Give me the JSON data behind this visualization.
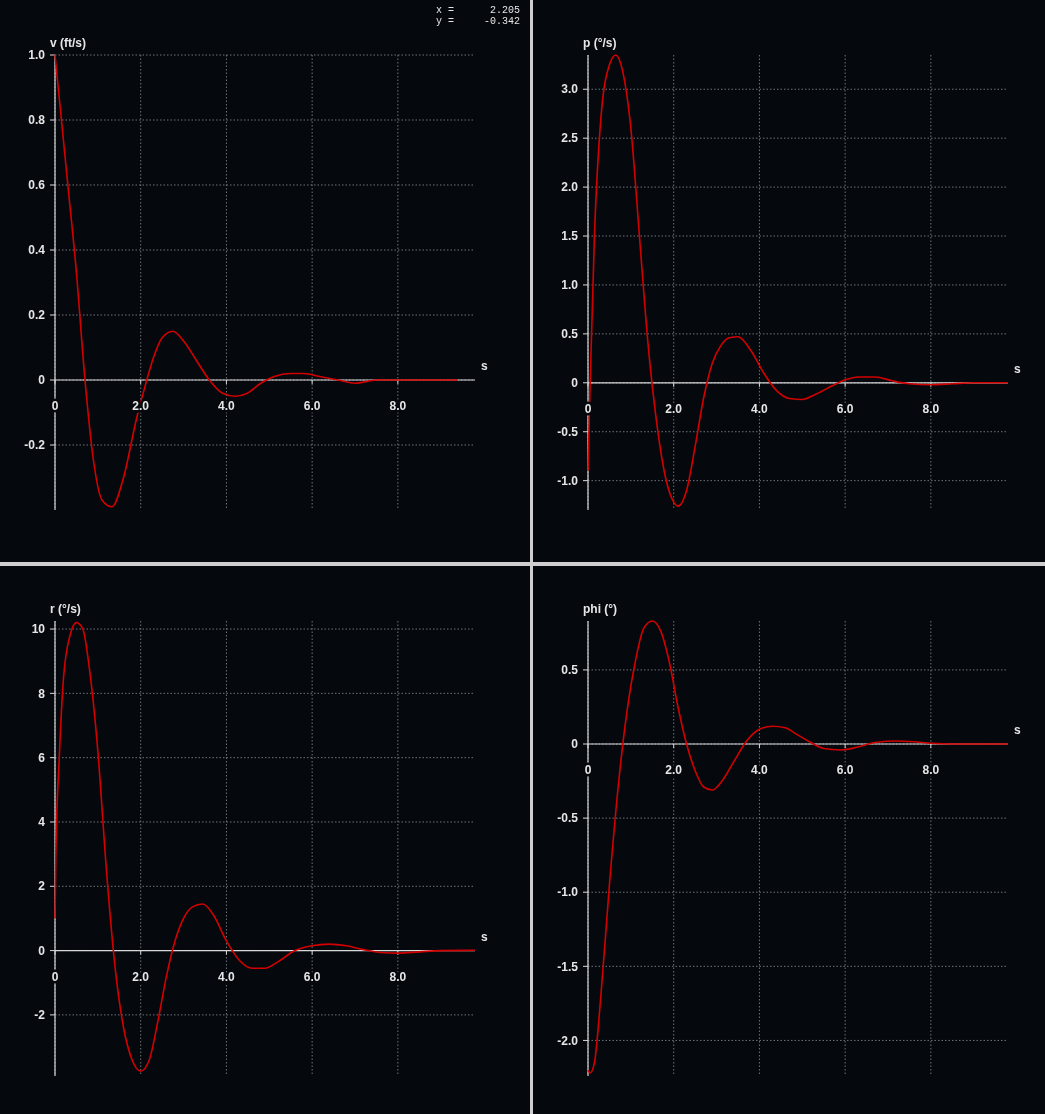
{
  "chart_data": [
    {
      "type": "line",
      "xlabel": "s",
      "ylabel": "v (ft/s)",
      "annotations": [
        "x =      2.205",
        "y =     -0.342"
      ],
      "grid": true,
      "xlim": [
        0,
        9.8
      ],
      "ylim": [
        -0.4,
        1.0
      ],
      "xticks": [
        {
          "value": 0,
          "label": "0"
        },
        {
          "value": 2,
          "label": "2.0"
        },
        {
          "value": 4,
          "label": "4.0"
        },
        {
          "value": 6,
          "label": "6.0"
        },
        {
          "value": 8,
          "label": "8.0"
        }
      ],
      "yticks": [
        {
          "value": 1,
          "label": "1.0"
        },
        0.8,
        0.6,
        0.4,
        0.2,
        0,
        -0.2
      ],
      "x": [
        0,
        0.3,
        0.5,
        0.7,
        0.9,
        1.1,
        1.33,
        1.6,
        1.9,
        2.1,
        2.3,
        2.5,
        2.75,
        3.0,
        3.3,
        3.6,
        3.9,
        4.2,
        4.5,
        4.8,
        5.1,
        5.5,
        5.8,
        6.2,
        6.6,
        7.0,
        7.5,
        8.0,
        8.5,
        9.0,
        9.4
      ],
      "series": [
        {
          "color": "#d40000",
          "values": [
            1.0,
            0.6,
            0.33,
            0.0,
            -0.25,
            -0.37,
            -0.39,
            -0.3,
            -0.12,
            -0.02,
            0.07,
            0.13,
            0.15,
            0.12,
            0.06,
            0.0,
            -0.04,
            -0.05,
            -0.04,
            -0.01,
            0.01,
            0.02,
            0.02,
            0.01,
            0,
            -0.01,
            0,
            0,
            0,
            0,
            0
          ]
        }
      ]
    },
    {
      "type": "line",
      "xlabel": "s",
      "ylabel": "p (°/s)",
      "grid": true,
      "xlim": [
        0,
        9.8
      ],
      "ylim": [
        -1.3,
        3.35
      ],
      "xticks": [
        {
          "value": 0,
          "label": "0"
        },
        {
          "value": 2,
          "label": "2.0"
        },
        {
          "value": 4,
          "label": "4.0"
        },
        {
          "value": 6,
          "label": "6.0"
        },
        {
          "value": 8,
          "label": "8.0"
        }
      ],
      "yticks": [
        {
          "value": 3,
          "label": "3.0"
        },
        2.5,
        {
          "value": 2,
          "label": "2.0"
        },
        1.5,
        {
          "value": 1,
          "label": "1.0"
        },
        0.5,
        0,
        -0.5,
        {
          "value": -1,
          "label": "-1.0"
        }
      ],
      "x": [
        0,
        0.05,
        0.15,
        0.3,
        0.5,
        0.65,
        0.8,
        1.0,
        1.2,
        1.4,
        1.6,
        1.8,
        2.0,
        2.1,
        2.3,
        2.5,
        2.7,
        2.9,
        3.1,
        3.3,
        3.5,
        3.8,
        4.1,
        4.4,
        4.7,
        5.0,
        5.3,
        5.7,
        6.0,
        6.3,
        6.7,
        7.1,
        7.5,
        8.0,
        8.5,
        9.0,
        9.8
      ],
      "series": [
        {
          "color": "#d40000",
          "values": [
            -0.9,
            0,
            1.5,
            2.7,
            3.25,
            3.35,
            3.2,
            2.6,
            1.5,
            0.4,
            -0.4,
            -0.95,
            -1.22,
            -1.26,
            -1.1,
            -0.65,
            -0.15,
            0.2,
            0.38,
            0.46,
            0.47,
            0.33,
            0.1,
            -0.08,
            -0.16,
            -0.17,
            -0.12,
            -0.03,
            0.03,
            0.06,
            0.06,
            0.02,
            -0.01,
            -0.02,
            -0.01,
            0,
            0
          ]
        }
      ]
    },
    {
      "type": "line",
      "xlabel": "s",
      "ylabel": "r (°/s)",
      "grid": true,
      "xlim": [
        0,
        9.8
      ],
      "ylim": [
        -3.9,
        10.25
      ],
      "xticks": [
        {
          "value": 0,
          "label": "0"
        },
        {
          "value": 2,
          "label": "2.0"
        },
        {
          "value": 4,
          "label": "4.0"
        },
        {
          "value": 6,
          "label": "6.0"
        },
        {
          "value": 8,
          "label": "8.0"
        }
      ],
      "yticks": [
        10,
        8,
        6,
        4,
        2,
        0,
        -2
      ],
      "x": [
        0,
        0.02,
        0.1,
        0.2,
        0.35,
        0.5,
        0.65,
        0.8,
        1.0,
        1.2,
        1.4,
        1.6,
        1.8,
        2.0,
        2.2,
        2.4,
        2.6,
        2.8,
        3.0,
        3.2,
        3.45,
        3.7,
        4.0,
        4.3,
        4.6,
        4.9,
        5.2,
        5.6,
        6.0,
        6.4,
        6.8,
        7.2,
        7.6,
        8.0,
        8.5,
        9.0,
        9.8
      ],
      "series": [
        {
          "color": "#d40000",
          "values": [
            1,
            3,
            6,
            8.5,
            9.8,
            10.2,
            10.0,
            8.8,
            6.2,
            2.5,
            -0.5,
            -2.4,
            -3.4,
            -3.75,
            -3.4,
            -2.2,
            -0.8,
            0.3,
            1.0,
            1.35,
            1.45,
            1.1,
            0.3,
            -0.3,
            -0.55,
            -0.55,
            -0.35,
            0.0,
            0.15,
            0.2,
            0.15,
            0.03,
            -0.06,
            -0.08,
            -0.04,
            0,
            0.01
          ]
        }
      ]
    },
    {
      "type": "line",
      "xlabel": "s",
      "ylabel": "phi (°)",
      "grid": true,
      "xlim": [
        0,
        9.8
      ],
      "ylim": [
        -2.24,
        0.83
      ],
      "xticks": [
        {
          "value": 0,
          "label": "0"
        },
        {
          "value": 2,
          "label": "2.0"
        },
        {
          "value": 4,
          "label": "4.0"
        },
        {
          "value": 6,
          "label": "6.0"
        },
        {
          "value": 8,
          "label": "8.0"
        }
      ],
      "yticks": [
        0.5,
        0,
        -0.5,
        {
          "value": -1,
          "label": "-1.0"
        },
        -1.5,
        {
          "value": -2,
          "label": "-2.0"
        }
      ],
      "x": [
        0,
        0.05,
        0.15,
        0.3,
        0.5,
        0.7,
        0.9,
        1.1,
        1.3,
        1.5,
        1.7,
        1.9,
        2.1,
        2.3,
        2.5,
        2.7,
        2.9,
        3.1,
        3.4,
        3.7,
        4.0,
        4.3,
        4.6,
        4.9,
        5.2,
        5.5,
        5.9,
        6.3,
        6.7,
        7.2,
        7.6,
        8.0,
        8.5,
        9.8
      ],
      "series": [
        {
          "color": "#d40000",
          "values": [
            -2.2,
            -2.22,
            -2.15,
            -1.7,
            -0.95,
            -0.3,
            0.2,
            0.55,
            0.78,
            0.83,
            0.76,
            0.55,
            0.25,
            0.0,
            -0.18,
            -0.29,
            -0.31,
            -0.26,
            -0.12,
            0.02,
            0.1,
            0.12,
            0.11,
            0.06,
            0.01,
            -0.03,
            -0.04,
            -0.02,
            0.01,
            0.02,
            0.015,
            0.005,
            0,
            0
          ]
        }
      ]
    }
  ]
}
